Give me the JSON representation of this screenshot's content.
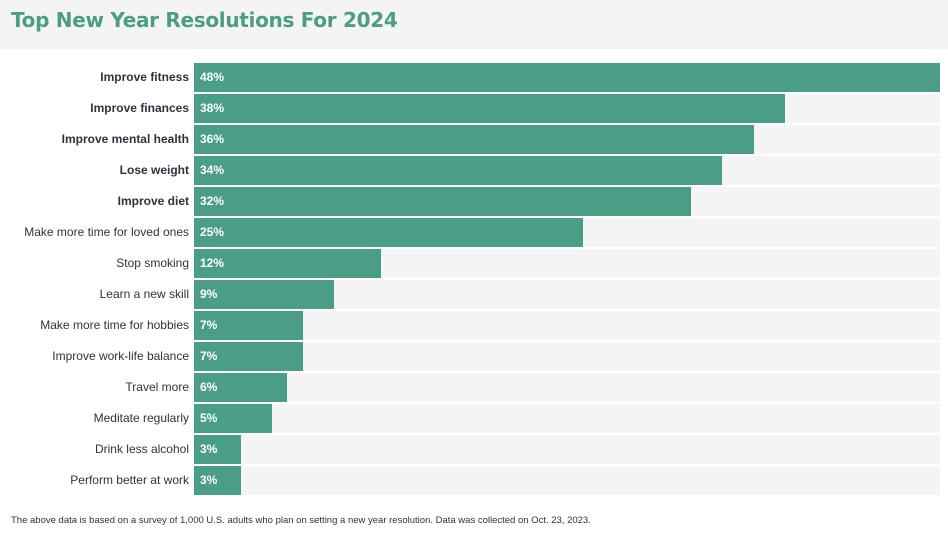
{
  "header": {
    "title": "Top New Year Resolutions For 2024"
  },
  "chart_data": {
    "type": "bar",
    "orientation": "horizontal",
    "title": "Top New Year Resolutions For 2024",
    "categories": [
      "Improve fitness",
      "Improve finances",
      "Improve mental health",
      "Lose weight",
      "Improve diet",
      "Make more time for loved ones",
      "Stop smoking",
      "Learn a new skill",
      "Make more time for hobbies",
      "Improve work-life balance",
      "Travel more",
      "Meditate regularly",
      "Drink less alcohol",
      "Perform better at work"
    ],
    "values": [
      48,
      38,
      36,
      34,
      32,
      25,
      12,
      9,
      7,
      7,
      6,
      5,
      3,
      3
    ],
    "value_labels": [
      "48%",
      "38%",
      "36%",
      "34%",
      "32%",
      "25%",
      "12%",
      "9%",
      "7%",
      "7%",
      "6%",
      "5%",
      "3%",
      "3%"
    ],
    "bold_categories": [
      true,
      true,
      true,
      true,
      true,
      false,
      false,
      false,
      false,
      false,
      false,
      false,
      false,
      false
    ],
    "xlim": [
      0,
      48
    ],
    "unit": "%",
    "grid": false,
    "legend": "none",
    "colors": {
      "bar": "#4a9e87",
      "track": "#f4f4f4",
      "title": "#4a9e87"
    }
  },
  "footnote": "The above data is based on a survey of 1,000 U.S. adults who plan on setting a new year resolution. Data was collected on Oct. 23, 2023."
}
